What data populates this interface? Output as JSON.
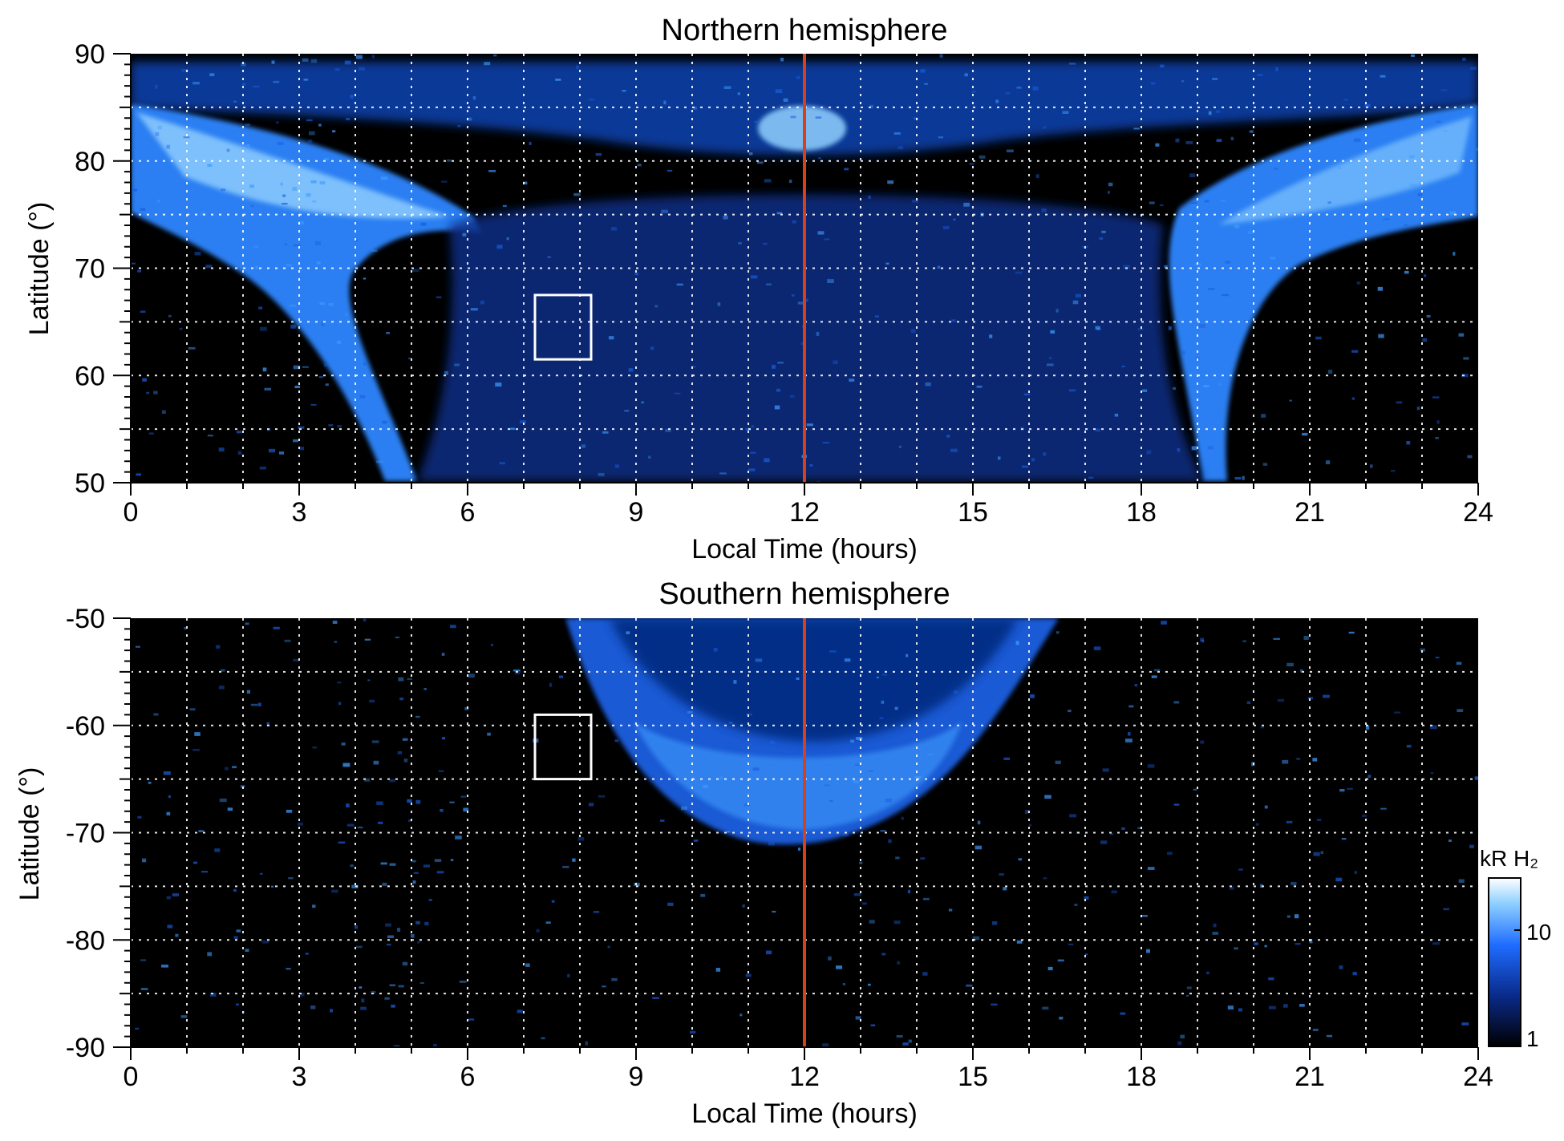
{
  "chart_data": [
    {
      "type": "heatmap",
      "title": "Northern hemisphere",
      "xlabel": "Local Time (hours)",
      "ylabel": "Latitude (°)",
      "xlim": [
        0,
        24
      ],
      "ylim": [
        50,
        90
      ],
      "xticks": [
        "0",
        "3",
        "6",
        "9",
        "12",
        "15",
        "18",
        "21",
        "24"
      ],
      "yticks": [
        "50",
        "60",
        "70",
        "80",
        "90"
      ],
      "grid": true,
      "reference_line": {
        "x": 12,
        "color": "#d9401a"
      },
      "highlight_box": {
        "x": [
          7.2,
          8.2
        ],
        "y": [
          61.5,
          67.5
        ]
      },
      "features": [
        {
          "name": "polar-cap emission",
          "x": [
            0,
            24
          ],
          "y": [
            76,
            88
          ]
        },
        {
          "name": "dusk/dawn oval arcs",
          "x": [
            0,
            5.5
          ],
          "y": [
            50,
            85
          ]
        },
        {
          "name": "noon cusp spot",
          "x": [
            11.3,
            12.7
          ],
          "y": [
            80,
            85
          ]
        }
      ]
    },
    {
      "type": "heatmap",
      "title": "Southern hemisphere",
      "xlabel": "Local Time (hours)",
      "ylabel": "Latitude (°)",
      "xlim": [
        0,
        24
      ],
      "ylim": [
        -90,
        -50
      ],
      "xticks": [
        "0",
        "3",
        "6",
        "9",
        "12",
        "15",
        "18",
        "21",
        "24"
      ],
      "yticks": [
        "-50",
        "-60",
        "-70",
        "-80",
        "-90"
      ],
      "grid": true,
      "reference_line": {
        "x": 12,
        "color": "#d9401a"
      },
      "highlight_box": {
        "x": [
          7.2,
          8.2
        ],
        "y": [
          -65,
          -59
        ]
      },
      "features": [
        {
          "name": "dayside oval arc",
          "x": [
            7.9,
            16.5
          ],
          "y": [
            -72,
            -50
          ]
        }
      ]
    }
  ],
  "colorbar": {
    "label": "kR H₂",
    "ticks": [
      "1",
      "10"
    ],
    "colors": [
      "#000000",
      "#0a2a8a",
      "#1e6cff",
      "#8fd0ff",
      "#ffffff"
    ]
  },
  "colors": {
    "background": "#000000",
    "grid": "#ffffff",
    "noon_line": "#d9401a"
  }
}
